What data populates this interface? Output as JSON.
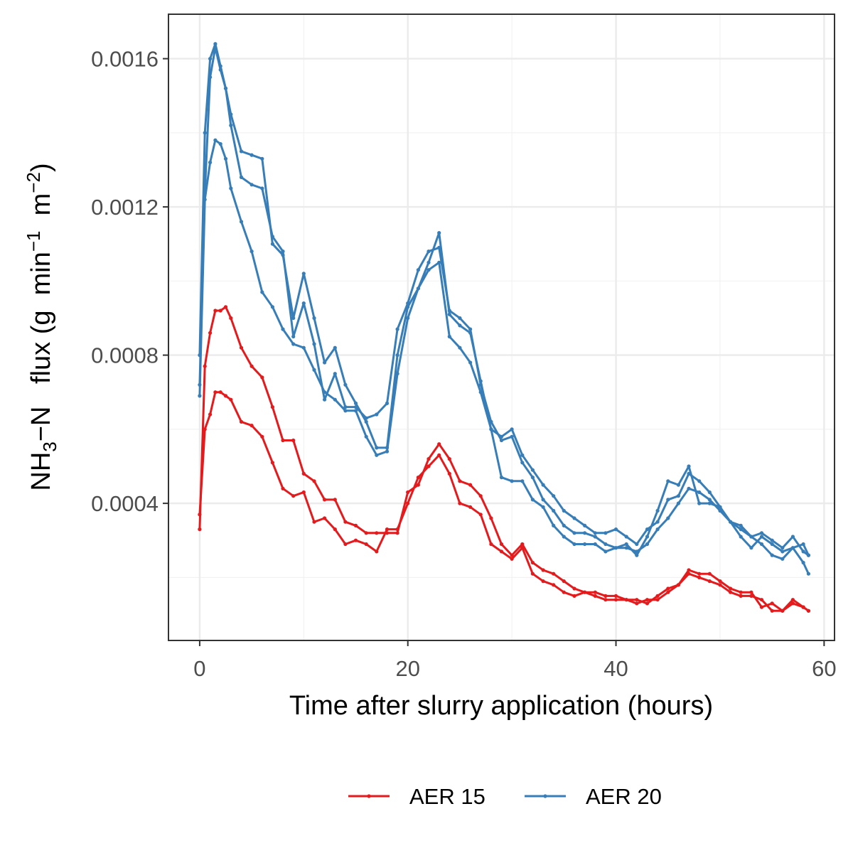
{
  "chart_data": {
    "type": "line",
    "title": "",
    "xlabel": "Time after slurry application (hours)",
    "ylabel": {
      "prefix": "NH",
      "sub": "3",
      "mid": "−N   flux (g  min",
      "sup1": "−1",
      "mid2": "  m",
      "sup2": "−2",
      "suffix": ")"
    },
    "xlim": [
      -3,
      61
    ],
    "ylim": [
      3e-05,
      0.00172
    ],
    "xticks": [
      0,
      20,
      40,
      60
    ],
    "xtick_labels": [
      "0",
      "20",
      "40",
      "60"
    ],
    "yticks": [
      0.0004,
      0.0008,
      0.0012,
      0.0016
    ],
    "ytick_labels": [
      "0.0004",
      "0.0008",
      "0.0012",
      "0.0016"
    ],
    "grid": true,
    "legend_position": "bottom",
    "legend": [
      {
        "label": "AER 15",
        "color": "#e41a1c"
      },
      {
        "label": "AER 20",
        "color": "#377eb8"
      }
    ],
    "series": [
      {
        "group": "AER 15",
        "color": "#e41a1c",
        "x": [
          0,
          0.5,
          1,
          1.5,
          2,
          2.5,
          3,
          4,
          5,
          6,
          7,
          8,
          9,
          10,
          11,
          12,
          13,
          14,
          15,
          16,
          17,
          18,
          19,
          20,
          21,
          22,
          23,
          24,
          25,
          26,
          27,
          28,
          29,
          30,
          31,
          32,
          33,
          34,
          35,
          36,
          37,
          38,
          39,
          40,
          41,
          42,
          43,
          44,
          45,
          46,
          47,
          48,
          49,
          50,
          51,
          52,
          53,
          54,
          55,
          56,
          57,
          58,
          58.5
        ],
        "y": [
          0.00033,
          0.00077,
          0.00086,
          0.00092,
          0.00092,
          0.00093,
          0.0009,
          0.00082,
          0.00077,
          0.00074,
          0.00066,
          0.00057,
          0.00057,
          0.00048,
          0.00046,
          0.00041,
          0.00041,
          0.00035,
          0.00034,
          0.00032,
          0.00032,
          0.00032,
          0.00032,
          0.00043,
          0.00045,
          0.00052,
          0.00056,
          0.00052,
          0.00046,
          0.00045,
          0.00042,
          0.00036,
          0.00029,
          0.00026,
          0.00029,
          0.00024,
          0.00022,
          0.00021,
          0.00019,
          0.00017,
          0.00016,
          0.00016,
          0.00015,
          0.00015,
          0.00014,
          0.00014,
          0.00013,
          0.00015,
          0.00017,
          0.00018,
          0.00022,
          0.00021,
          0.00021,
          0.00019,
          0.00017,
          0.00016,
          0.00016,
          0.00012,
          0.00013,
          0.00011,
          0.00014,
          0.00012,
          0.00011
        ]
      },
      {
        "group": "AER 15",
        "color": "#e41a1c",
        "x": [
          0,
          0.5,
          1,
          1.5,
          2,
          2.5,
          3,
          4,
          5,
          6,
          7,
          8,
          9,
          10,
          11,
          12,
          13,
          14,
          15,
          16,
          17,
          18,
          19,
          20,
          21,
          22,
          23,
          24,
          25,
          26,
          27,
          28,
          29,
          30,
          31,
          32,
          33,
          34,
          35,
          36,
          37,
          38,
          39,
          40,
          41,
          42,
          43,
          44,
          45,
          46,
          47,
          48,
          49,
          50,
          51,
          52,
          53,
          54,
          55,
          56,
          57,
          58,
          58.5
        ],
        "y": [
          0.00037,
          0.0006,
          0.00064,
          0.0007,
          0.0007,
          0.00069,
          0.00068,
          0.00062,
          0.00061,
          0.00058,
          0.00051,
          0.00044,
          0.00042,
          0.00043,
          0.00035,
          0.00036,
          0.00033,
          0.00029,
          0.0003,
          0.00029,
          0.00027,
          0.00033,
          0.00033,
          0.0004,
          0.00047,
          0.0005,
          0.00053,
          0.00048,
          0.0004,
          0.00039,
          0.00037,
          0.00029,
          0.00027,
          0.00025,
          0.00028,
          0.00021,
          0.00019,
          0.00018,
          0.00016,
          0.00015,
          0.00016,
          0.00015,
          0.00014,
          0.00014,
          0.00014,
          0.00013,
          0.00014,
          0.00014,
          0.00016,
          0.00018,
          0.00021,
          0.0002,
          0.00019,
          0.00018,
          0.00016,
          0.00015,
          0.00015,
          0.00014,
          0.00011,
          0.00011,
          0.00013,
          0.00012,
          0.00011
        ]
      },
      {
        "group": "AER 20",
        "color": "#377eb8",
        "x": [
          0,
          0.5,
          1,
          1.5,
          2,
          2.5,
          3,
          4,
          5,
          6,
          7,
          8,
          9,
          10,
          11,
          12,
          13,
          14,
          15,
          16,
          17,
          18,
          19,
          20,
          21,
          22,
          23,
          24,
          25,
          26,
          27,
          28,
          29,
          30,
          31,
          32,
          33,
          34,
          35,
          36,
          37,
          38,
          39,
          40,
          41,
          42,
          43,
          44,
          45,
          46,
          47,
          48,
          49,
          50,
          51,
          52,
          53,
          54,
          55,
          56,
          57,
          58,
          58.5
        ],
        "y": [
          0.0008,
          0.0014,
          0.0016,
          0.00164,
          0.00158,
          0.00152,
          0.00145,
          0.00135,
          0.00134,
          0.00133,
          0.0011,
          0.00107,
          0.0009,
          0.00102,
          0.0009,
          0.00078,
          0.00082,
          0.00072,
          0.00067,
          0.00062,
          0.00055,
          0.00055,
          0.0008,
          0.00093,
          0.00098,
          0.00103,
          0.00105,
          0.00085,
          0.00082,
          0.00078,
          0.0007,
          0.0006,
          0.00058,
          0.0006,
          0.00053,
          0.00049,
          0.00045,
          0.00042,
          0.00038,
          0.00036,
          0.00034,
          0.00032,
          0.00032,
          0.00033,
          0.00031,
          0.00029,
          0.00033,
          0.00035,
          0.00041,
          0.00042,
          0.00048,
          0.00046,
          0.00043,
          0.00039,
          0.00035,
          0.00034,
          0.00031,
          0.00032,
          0.0003,
          0.00028,
          0.00031,
          0.00027,
          0.00026
        ]
      },
      {
        "group": "AER 20",
        "color": "#377eb8",
        "x": [
          0,
          0.5,
          1,
          1.5,
          2,
          2.5,
          3,
          4,
          5,
          6,
          7,
          8,
          9,
          10,
          11,
          12,
          13,
          14,
          15,
          16,
          17,
          18,
          19,
          20,
          21,
          22,
          23,
          24,
          25,
          26,
          27,
          28,
          29,
          30,
          31,
          32,
          33,
          34,
          35,
          36,
          37,
          38,
          39,
          40,
          41,
          42,
          43,
          44,
          45,
          46,
          47,
          48,
          49,
          50,
          51,
          52,
          53,
          54,
          55,
          56,
          57,
          58,
          58.5
        ],
        "y": [
          0.00072,
          0.00124,
          0.00155,
          0.00163,
          0.00157,
          0.00152,
          0.00142,
          0.00128,
          0.00126,
          0.00125,
          0.00112,
          0.00108,
          0.00085,
          0.00094,
          0.00083,
          0.00068,
          0.00075,
          0.00066,
          0.00066,
          0.00063,
          0.00064,
          0.00067,
          0.00087,
          0.00094,
          0.00103,
          0.00108,
          0.00109,
          0.00092,
          0.0009,
          0.00087,
          0.00072,
          0.00062,
          0.00057,
          0.00058,
          0.00051,
          0.00047,
          0.00041,
          0.00038,
          0.00034,
          0.00032,
          0.00032,
          0.00031,
          0.00029,
          0.00028,
          0.00028,
          0.00027,
          0.00029,
          0.00033,
          0.00036,
          0.0004,
          0.00044,
          0.00043,
          0.00041,
          0.00038,
          0.00035,
          0.00033,
          0.00031,
          0.00029,
          0.00026,
          0.00025,
          0.00028,
          0.00024,
          0.00021
        ]
      },
      {
        "group": "AER 20",
        "color": "#377eb8",
        "x": [
          0,
          0.5,
          1,
          1.5,
          2,
          2.5,
          3,
          4,
          5,
          6,
          7,
          8,
          9,
          10,
          11,
          12,
          13,
          14,
          15,
          16,
          17,
          18,
          19,
          20,
          21,
          22,
          23,
          24,
          25,
          26,
          27,
          28,
          29,
          30,
          31,
          32,
          33,
          34,
          35,
          36,
          37,
          38,
          39,
          40,
          41,
          42,
          43,
          44,
          45,
          46,
          47,
          48,
          49,
          50,
          51,
          52,
          53,
          54,
          55,
          56,
          57,
          58,
          58.5
        ],
        "y": [
          0.00069,
          0.00122,
          0.00132,
          0.00138,
          0.00137,
          0.00133,
          0.00125,
          0.00116,
          0.00108,
          0.00097,
          0.00093,
          0.00087,
          0.00083,
          0.00082,
          0.00076,
          0.0007,
          0.00068,
          0.00065,
          0.00065,
          0.00058,
          0.00053,
          0.00054,
          0.00075,
          0.0009,
          0.00098,
          0.00105,
          0.00113,
          0.00091,
          0.00088,
          0.00086,
          0.00073,
          0.0006,
          0.00047,
          0.00046,
          0.00046,
          0.00041,
          0.00039,
          0.00034,
          0.00031,
          0.00029,
          0.00029,
          0.00029,
          0.00027,
          0.00028,
          0.00029,
          0.00026,
          0.00031,
          0.00038,
          0.00046,
          0.00045,
          0.0005,
          0.0004,
          0.0004,
          0.00039,
          0.00035,
          0.00031,
          0.00028,
          0.00031,
          0.00029,
          0.00027,
          0.00028,
          0.00029,
          0.00026
        ]
      }
    ]
  }
}
